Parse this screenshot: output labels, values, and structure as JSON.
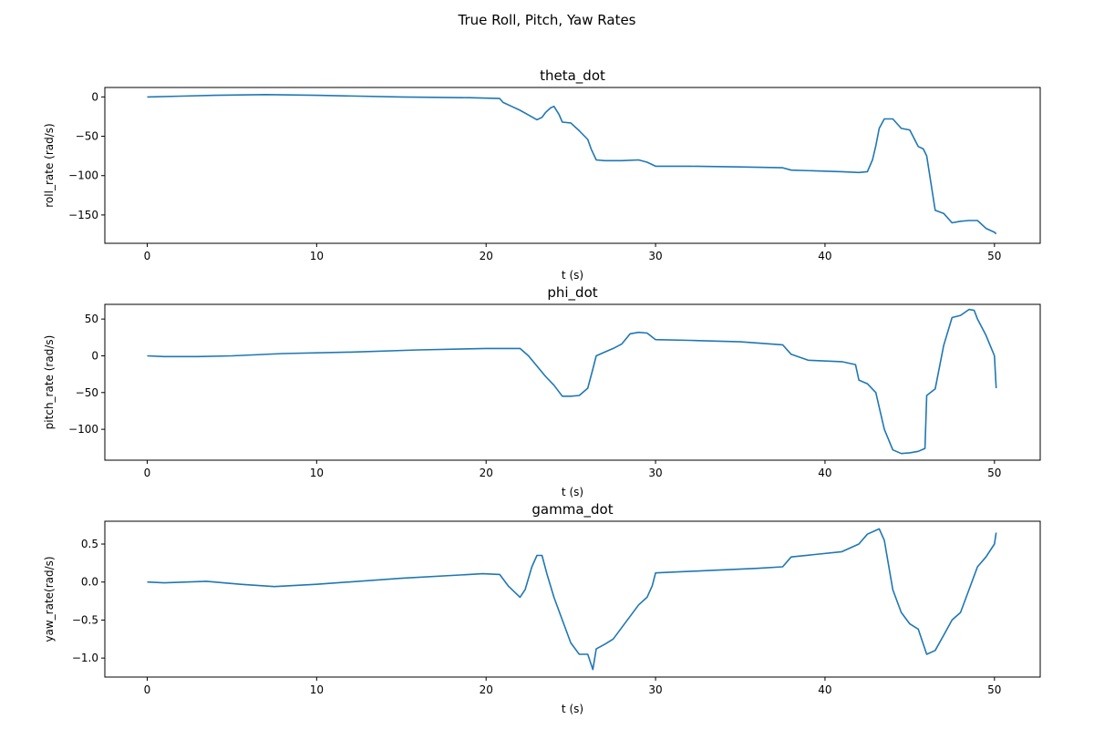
{
  "chart_data": {
    "suptitle": "True Roll, Pitch, Yaw Rates",
    "panels": [
      {
        "type": "line",
        "title": "theta_dot",
        "xlabel": "t (s)",
        "ylabel": "roll_rate (rad/s)",
        "xlim": [
          -2.5,
          52.7
        ],
        "ylim": [
          -186,
          12
        ],
        "xticks": [
          0,
          10,
          20,
          30,
          40,
          50
        ],
        "yticks": [
          0,
          -50,
          -100,
          -150
        ],
        "color": "#1f77b4",
        "series": [
          {
            "name": "theta_dot",
            "x": [
              0,
              2,
              4,
              7,
              10,
              15,
              19,
              20.8,
              21,
              21.5,
              22,
              22.5,
              23,
              23.3,
              23.5,
              23.8,
              24,
              24.3,
              24.5,
              25,
              25.5,
              26,
              26.2,
              26.5,
              27,
              28,
              29,
              29.5,
              30,
              32,
              35,
              37.5,
              38,
              41,
              42,
              42.5,
              42.8,
              43,
              43.2,
              43.5,
              44,
              44.5,
              45,
              45.5,
              45.8,
              46,
              46.5,
              47,
              47.5,
              48,
              48.5,
              49,
              49.5,
              50,
              50.1
            ],
            "y": [
              0,
              1,
              2,
              3,
              2,
              0,
              -1,
              -2,
              -7,
              -12,
              -17,
              -23,
              -29,
              -26,
              -20,
              -14,
              -12,
              -22,
              -32,
              -33,
              -43,
              -54,
              -66,
              -80,
              -81,
              -81,
              -80,
              -83,
              -88,
              -88,
              -89,
              -90,
              -93,
              -95,
              -96,
              -95,
              -80,
              -62,
              -40,
              -28,
              -28,
              -40,
              -42,
              -63,
              -66,
              -75,
              -144,
              -148,
              -160,
              -158,
              -157,
              -157,
              -167,
              -172,
              -174
            ]
          }
        ]
      },
      {
        "type": "line",
        "title": "phi_dot",
        "xlabel": "t (s)",
        "ylabel": "pitch_rate (rad/s)",
        "xlim": [
          -2.5,
          52.7
        ],
        "ylim": [
          -142,
          70
        ],
        "xticks": [
          0,
          10,
          20,
          30,
          40,
          50
        ],
        "yticks": [
          50,
          0,
          -50,
          -100
        ],
        "color": "#1f77b4",
        "series": [
          {
            "name": "phi_dot",
            "x": [
              0,
              1,
              3,
              5,
              8,
              12,
              16,
              20,
              22,
              22.5,
              23,
              23.5,
              24,
              24.5,
              25,
              25.5,
              26,
              26.3,
              26.5,
              27,
              27.5,
              28,
              28.5,
              29,
              29.5,
              30,
              32,
              35,
              37.5,
              38,
              39,
              41,
              41.8,
              42,
              42.5,
              43,
              43.2,
              43.5,
              44,
              44.5,
              45,
              45.5,
              45.9,
              46,
              46.5,
              47,
              47.5,
              48,
              48.5,
              48.8,
              49,
              49.5,
              50,
              50.1
            ],
            "y": [
              0,
              -1,
              -1,
              0,
              3,
              5,
              8,
              10,
              10,
              0,
              -14,
              -28,
              -40,
              -55,
              -55,
              -54,
              -44,
              -18,
              0,
              5,
              10,
              16,
              30,
              32,
              31,
              22,
              21,
              19,
              15,
              2,
              -6,
              -8,
              -12,
              -33,
              -38,
              -50,
              -70,
              -100,
              -128,
              -133,
              -132,
              -130,
              -126,
              -54,
              -45,
              14,
              52,
              55,
              63,
              62,
              50,
              28,
              0,
              -44
            ]
          }
        ]
      },
      {
        "type": "line",
        "title": "gamma_dot",
        "xlabel": "t (s)",
        "ylabel": "yaw_rate(rad/s)",
        "xlim": [
          -2.5,
          52.7
        ],
        "ylim": [
          -1.25,
          0.8
        ],
        "xticks": [
          0,
          10,
          20,
          30,
          40,
          50
        ],
        "yticks": [
          0.5,
          0.0,
          -0.5,
          -1.0
        ],
        "ytick_labels": [
          "0.5",
          "0.0",
          "−0.5",
          "−1.0"
        ],
        "color": "#1f77b4",
        "series": [
          {
            "name": "gamma_dot",
            "x": [
              0,
              1,
              3.5,
              5.5,
              7.5,
              10,
              15,
              19.8,
              20.8,
              21.3,
              22,
              22.3,
              22.7,
              23,
              23.3,
              23.6,
              24,
              24.5,
              25,
              25.5,
              26,
              26.3,
              26.5,
              27,
              27.5,
              28,
              28.5,
              29,
              29.5,
              29.8,
              30,
              33,
              36,
              37.5,
              38,
              41,
              42,
              42.5,
              43,
              43.2,
              43.5,
              44,
              44.5,
              45,
              45.5,
              46,
              46.5,
              47,
              47.5,
              48,
              48.5,
              49,
              49.5,
              50,
              50.1
            ],
            "y": [
              0,
              -0.01,
              0.01,
              -0.03,
              -0.06,
              -0.03,
              0.05,
              0.11,
              0.1,
              -0.05,
              -0.2,
              -0.1,
              0.2,
              0.35,
              0.35,
              0.1,
              -0.2,
              -0.5,
              -0.8,
              -0.95,
              -0.95,
              -1.15,
              -0.88,
              -0.82,
              -0.75,
              -0.6,
              -0.45,
              -0.3,
              -0.2,
              -0.05,
              0.12,
              0.15,
              0.18,
              0.2,
              0.33,
              0.4,
              0.5,
              0.63,
              0.68,
              0.7,
              0.55,
              -0.1,
              -0.4,
              -0.55,
              -0.62,
              -0.95,
              -0.9,
              -0.7,
              -0.5,
              -0.4,
              -0.1,
              0.2,
              0.33,
              0.5,
              0.65
            ]
          }
        ]
      }
    ]
  }
}
